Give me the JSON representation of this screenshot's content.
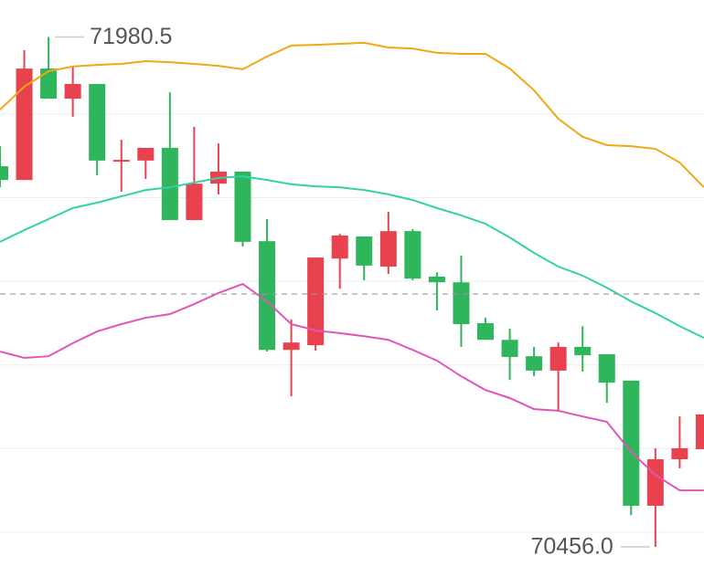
{
  "chart_data": {
    "type": "candlestick",
    "open": [
      71594,
      71553,
      71886,
      71796,
      71840,
      71608,
      71611,
      71649,
      71433,
      71542,
      71578,
      71370,
      71045,
      71059,
      71318,
      71384,
      71294,
      71400,
      71264,
      71247,
      71125,
      71075,
      71026,
      70983,
      71054,
      71032,
      70953,
      70579,
      70718,
      70748
    ],
    "high": [
      71654,
      71941,
      71980.5,
      71894,
      71840,
      71673,
      71649,
      71815,
      71712,
      71662,
      71578,
      71436,
      71136,
      71321,
      71392,
      71384,
      71458,
      71406,
      71277,
      71327,
      71141,
      71108,
      71054,
      71067,
      71116,
      71032,
      70953,
      70751,
      70846,
      70852
    ],
    "low": [
      71531,
      71553,
      71796,
      71742,
      71567,
      71518,
      71556,
      71433,
      71433,
      71510,
      71354,
      71040,
      70906,
      71043,
      71228,
      71253,
      71272,
      71253,
      71163,
      71054,
      71075,
      70955,
      70966,
      70860,
      70980,
      70887,
      70551,
      70456.0,
      70691,
      70748
    ],
    "close": [
      71553,
      71886,
      71796,
      71840,
      71611,
      71613,
      71649,
      71433,
      71542,
      71578,
      71368,
      71045,
      71067,
      71321,
      71387,
      71297,
      71400,
      71258,
      71247,
      71122,
      71075,
      71024,
      70983,
      71054,
      71029,
      70947,
      70579,
      70718,
      70751,
      70852
    ],
    "up_color": "#e8424f",
    "down_color": "#2fb55b",
    "bands": [
      {
        "color": "#f0a814",
        "values": [
          71763,
          71832,
          71878,
          71892,
          71897,
          71900,
          71908,
          71905,
          71900,
          71894,
          71884,
          71922,
          71955,
          71957,
          71960,
          71963,
          71949,
          71946,
          71933,
          71930,
          71930,
          71886,
          71821,
          71736,
          71682,
          71657,
          71654,
          71646,
          71605,
          71531
        ]
      },
      {
        "color": "#33d1a6",
        "values": [
          71368,
          71403,
          71436,
          71469,
          71485,
          71504,
          71523,
          71531,
          71545,
          71559,
          71564,
          71553,
          71540,
          71534,
          71531,
          71523,
          71510,
          71493,
          71469,
          71447,
          71422,
          71381,
          71335,
          71294,
          71267,
          71231,
          71190,
          71155,
          71116,
          71081
        ]
      },
      {
        "color": "#e056b8",
        "values": [
          71040,
          71021,
          71026,
          71065,
          71100,
          71122,
          71141,
          71152,
          71182,
          71215,
          71242,
          71190,
          71122,
          71103,
          71095,
          71086,
          71075,
          71045,
          71013,
          70966,
          70925,
          70901,
          70868,
          70863,
          70846,
          70830,
          70740,
          70671,
          70625,
          70625
        ]
      }
    ],
    "annotations": [
      "71980.5",
      "70456.0"
    ],
    "reference_line": 71212,
    "ylim": [
      70366,
      72091
    ],
    "yticks": [
      70500,
      70750,
      71000,
      71250,
      71500,
      71750
    ],
    "grid": true
  }
}
